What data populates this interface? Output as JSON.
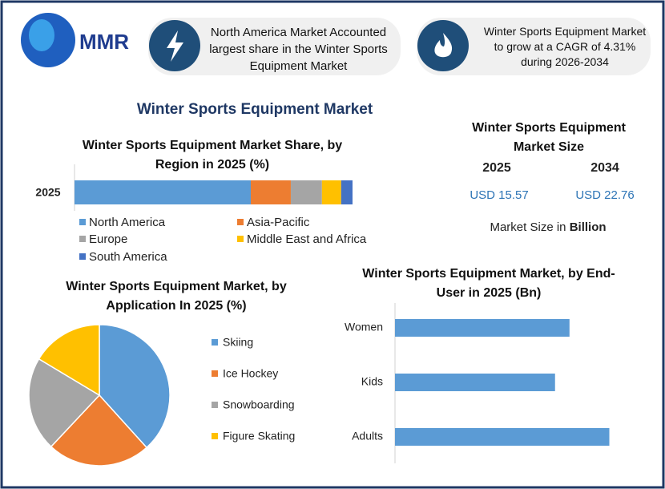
{
  "header": {
    "logo": "MMR",
    "box1": "North America Market Accounted largest share in the Winter Sports Equipment Market",
    "box2": "Winter Sports Equipment Market to grow at a CAGR of 4.31% during 2026-2034"
  },
  "title": "Winter Sports Equipment Market",
  "market_size": {
    "title": "Winter Sports Equipment Market Size",
    "years": [
      "2025",
      "2034"
    ],
    "values": [
      "USD 15.57",
      "USD 22.76"
    ],
    "note": "Market Size in",
    "note_unit": "Billion"
  },
  "chart_data": [
    {
      "type": "bar",
      "stacked": true,
      "orientation": "horizontal",
      "title": "Winter Sports Equipment Market Share, by Region in 2025 (%)",
      "categories": [
        "2025"
      ],
      "series": [
        {
          "name": "North America",
          "color": "#5b9bd5",
          "values": [
            63.4
          ]
        },
        {
          "name": "Asia-Pacific",
          "color": "#ed7d31",
          "values": [
            14.4
          ]
        },
        {
          "name": "Europe",
          "color": "#a5a5a5",
          "values": [
            11.2
          ]
        },
        {
          "name": "Middle East and Africa",
          "color": "#ffc000",
          "values": [
            6.9
          ]
        },
        {
          "name": "South America",
          "color": "#4472c4",
          "values": [
            4.1
          ]
        }
      ]
    },
    {
      "type": "pie",
      "title": "Winter Sports Equipment Market, by Application In 2025 (%)",
      "categories": [
        "Skiing",
        "Ice Hockey",
        "Snowboarding",
        "Figure Skating"
      ],
      "values": [
        38.3,
        23.7,
        21.6,
        16.4
      ],
      "colors": [
        "#5b9bd5",
        "#ed7d31",
        "#a5a5a5",
        "#ffc000"
      ]
    },
    {
      "type": "bar",
      "orientation": "horizontal",
      "title": "Winter Sports Equipment Market, by End-User in 2025 (Bn)",
      "categories": [
        "Women",
        "Kids",
        "Adults"
      ],
      "values": [
        4.95,
        4.54,
        6.08
      ],
      "color": "#5b9bd5"
    }
  ]
}
